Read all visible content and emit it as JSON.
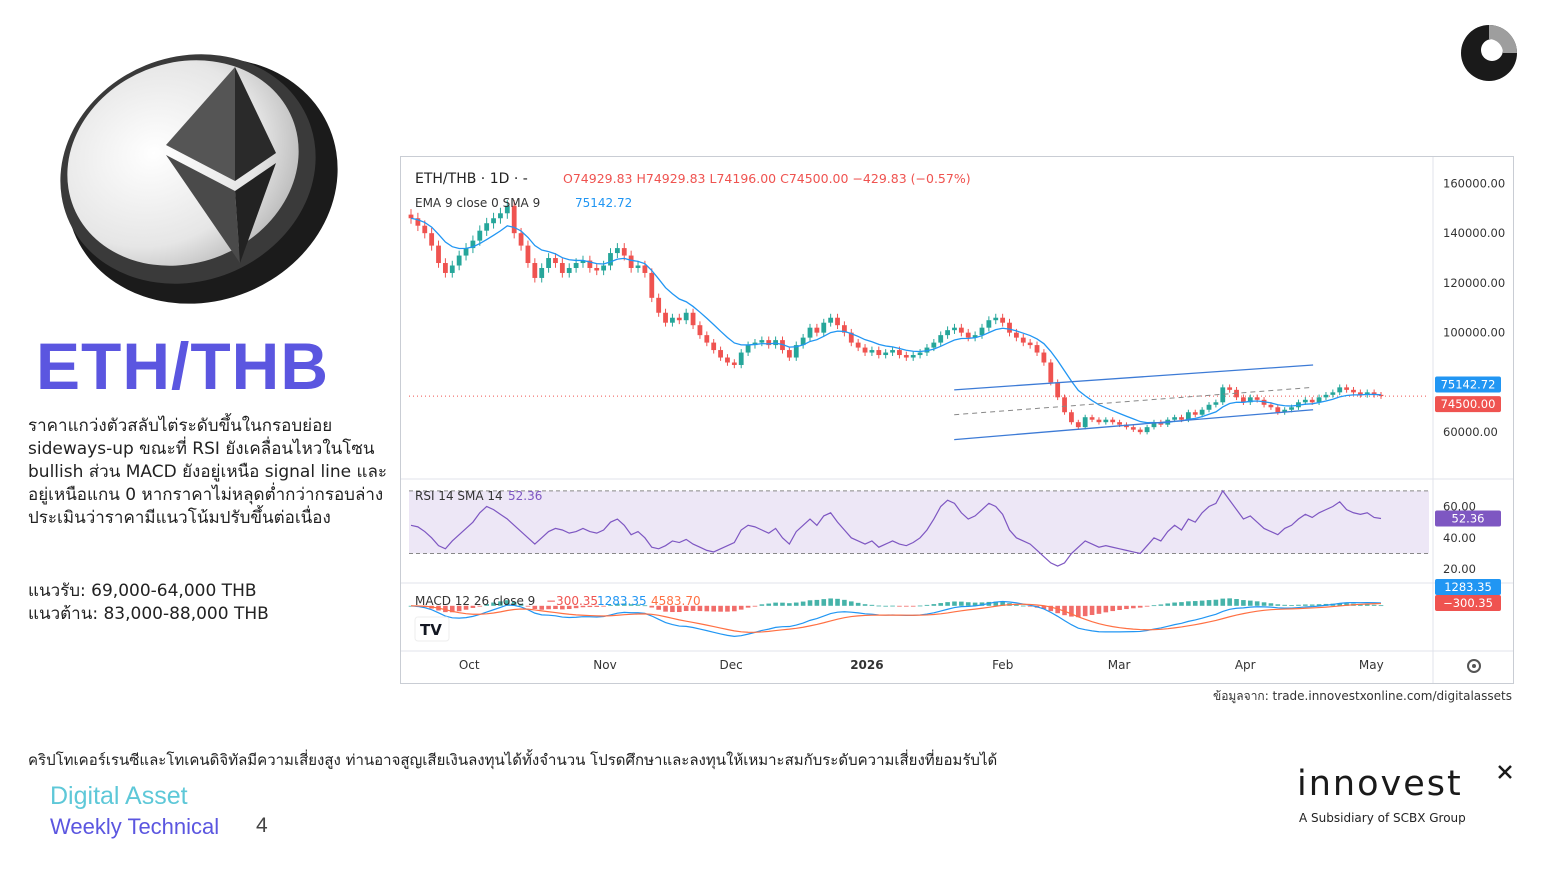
{
  "title": "ETH/THB",
  "analysis": "ราคาแกว่งตัวสลับไต่ระดับขึ้นในกรอบย่อย sideways-up ขณะที่ RSI ยังเคลื่อนไหวในโซน bullish ส่วน MACD ยังอยู่เหนือ signal line และอยู่เหนือแกน 0 หากราคาไม่หลุดต่ำกว่ากรอบล่าง ประเมินว่าราคามีแนวโน้มปรับขึ้นต่อเนื่อง",
  "support": "แนวรับ: 69,000-64,000 THB",
  "resistance": "แนวต้าน: 83,000-88,000 THB",
  "source": "ข้อมูลจาก: trade.innovestxonline.com/digitalassets",
  "disclaimer": "คริปโทเคอร์เรนซีและโทเคนดิจิทัลมีความเสี่ยงสูง ท่านอาจสูญเสียเงินลงทุนได้ทั้งจำนวน โปรดศึกษาและลงทุนให้เหมาะสมกับระดับความเสี่ยงที่ยอมรับได้",
  "footer": {
    "line1": "Digital Asset",
    "line2": "Weekly Technical",
    "page": "4"
  },
  "logo": {
    "text": "innovest",
    "sub": "A Subsidiary of SCBX Group"
  },
  "colors": {
    "accent": "#5b56e0",
    "teal": "#5ec8d8",
    "up": "#26a69a",
    "down": "#ef5350",
    "ema": "#2196f3",
    "rsi": "#7e57c2"
  },
  "chart_data": {
    "type": "candlestick",
    "symbol": "ETH/THB",
    "interval": "1D",
    "ohlc_header": {
      "open": "O74929.83",
      "high": "H74929.83",
      "low": "L74196.00",
      "close": "C74500.00",
      "change": "−429.83 (−0.57%)"
    },
    "ema_label": "EMA 9 close 0 SMA 9",
    "ema_value": "75142.72",
    "price_axis": [
      "160000.00",
      "140000.00",
      "120000.00",
      "100000.00",
      "60000.00"
    ],
    "ylim": [
      50000,
      165000
    ],
    "ema_tag": "75142.72",
    "last_price_tag": "74500.00",
    "last_price": 74500,
    "x_labels": [
      "Oct",
      "Nov",
      "Dec",
      "2026",
      "Feb",
      "Mar",
      "Apr",
      "May"
    ],
    "closes": [
      146000,
      143000,
      140000,
      135000,
      128000,
      124000,
      127000,
      131000,
      134000,
      137000,
      141000,
      144000,
      146000,
      148000,
      151000,
      140000,
      135000,
      128000,
      122000,
      126000,
      130000,
      128000,
      124000,
      126000,
      128000,
      129000,
      126000,
      125000,
      127000,
      132000,
      134000,
      131000,
      126000,
      127000,
      124000,
      114000,
      108000,
      104000,
      106000,
      105000,
      108000,
      103000,
      99000,
      96000,
      93000,
      90000,
      88000,
      87000,
      92000,
      95000,
      96000,
      97000,
      95000,
      97000,
      93000,
      90000,
      95000,
      98000,
      102000,
      100000,
      104000,
      106000,
      103000,
      100000,
      96000,
      94000,
      92000,
      93000,
      91000,
      92000,
      93000,
      91000,
      90000,
      91000,
      92000,
      94000,
      96000,
      99000,
      101000,
      102000,
      100000,
      98000,
      99000,
      102000,
      105000,
      106000,
      104000,
      100000,
      98000,
      96000,
      95000,
      92000,
      88000,
      80000,
      74000,
      68000,
      64000,
      62000,
      66000,
      65000,
      64000,
      65000,
      64000,
      63000,
      62000,
      61000,
      60000,
      62000,
      64000,
      63000,
      65000,
      66000,
      65000,
      68000,
      67000,
      69000,
      71000,
      72000,
      78000,
      77000,
      74000,
      72000,
      74000,
      73000,
      71000,
      70000,
      68000,
      69000,
      70000,
      72000,
      73000,
      72000,
      74000,
      75000,
      76000,
      78000,
      77000,
      76000,
      75000,
      76000,
      75000,
      74500
    ],
    "channel": {
      "upper": [
        [
          0.56,
          77000
        ],
        [
          0.93,
          87000
        ]
      ],
      "lower": [
        [
          0.56,
          57000
        ],
        [
          0.93,
          69000
        ]
      ]
    },
    "rsi": {
      "label": "RSI 14 SMA 14",
      "value": "52.36",
      "axis": [
        "60.00",
        "40.00",
        "20.00"
      ],
      "ylim": [
        15,
        75
      ],
      "bands": [
        70,
        30
      ],
      "values": [
        48,
        47,
        44,
        40,
        35,
        33,
        38,
        42,
        46,
        50,
        56,
        60,
        58,
        55,
        52,
        48,
        44,
        40,
        36,
        40,
        44,
        46,
        45,
        43,
        44,
        46,
        44,
        43,
        45,
        50,
        52,
        48,
        42,
        44,
        40,
        34,
        33,
        35,
        38,
        37,
        39,
        36,
        34,
        32,
        31,
        33,
        35,
        37,
        45,
        48,
        47,
        45,
        43,
        46,
        40,
        36,
        44,
        48,
        52,
        48,
        54,
        56,
        50,
        45,
        40,
        38,
        36,
        38,
        34,
        36,
        38,
        36,
        35,
        37,
        40,
        45,
        52,
        60,
        64,
        62,
        56,
        52,
        54,
        58,
        62,
        60,
        55,
        45,
        40,
        38,
        36,
        32,
        28,
        24,
        22,
        24,
        30,
        34,
        38,
        36,
        34,
        35,
        34,
        33,
        32,
        31,
        30,
        35,
        40,
        38,
        44,
        48,
        45,
        52,
        50,
        56,
        60,
        62,
        70,
        64,
        58,
        52,
        54,
        50,
        46,
        44,
        42,
        46,
        48,
        52,
        55,
        53,
        56,
        58,
        60,
        63,
        58,
        56,
        55,
        56,
        53,
        52.36
      ]
    },
    "macd": {
      "label": "MACD 12 26 close 9",
      "values_text": [
        "−300.35",
        "1283.35",
        "4583.70"
      ],
      "tag_signal": "1283.35",
      "tag_macd": "−300.35",
      "ylim": [
        -14000,
        6000
      ]
    }
  }
}
